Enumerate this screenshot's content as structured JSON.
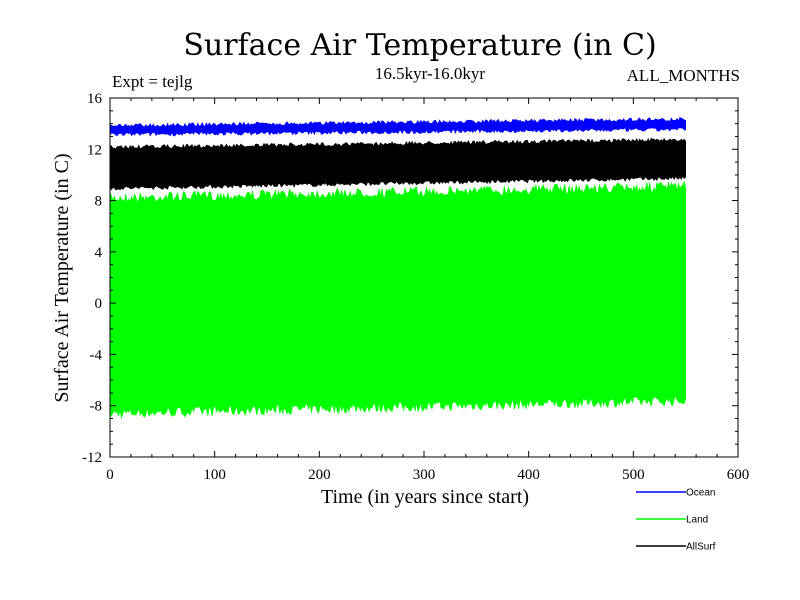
{
  "chart_data": {
    "type": "area",
    "title": "Surface Air Temperature (in C)",
    "subtitle": "16.5kyr-16.0kyr",
    "experiment": "Expt = tejlg",
    "months": "ALL_MONTHS",
    "xlabel": "Time (in years since start)",
    "ylabel": "Surface Air Temperature (in C)",
    "xlim": [
      0,
      600
    ],
    "ylim": [
      -12,
      16
    ],
    "xticks": [
      0,
      100,
      200,
      300,
      400,
      500,
      600
    ],
    "yticks": [
      16,
      12,
      8,
      4,
      0,
      -4,
      -8,
      -12
    ],
    "x_end": 550,
    "legend_position": "bottom-right",
    "series": [
      {
        "name": "Ocean",
        "color": "#0000ff",
        "min_start": 13.0,
        "min_end": 13.4,
        "max_start": 14.0,
        "max_end": 14.5
      },
      {
        "name": "Land",
        "color": "#00ff00",
        "min_start": -9.0,
        "min_end": -8.0,
        "max_start": 8.6,
        "max_end": 9.5
      },
      {
        "name": "AllSurf",
        "color": "#000000",
        "min_start": 8.8,
        "min_end": 9.6,
        "max_start": 12.3,
        "max_end": 12.9
      }
    ]
  }
}
